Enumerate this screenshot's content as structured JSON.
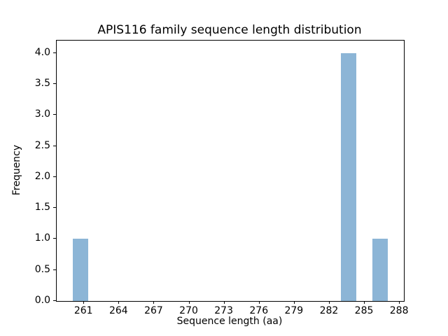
{
  "chart_data": {
    "type": "bar",
    "subtype": "histogram",
    "title": "APIS116 family sequence length distribution",
    "xlabel": "Sequence length (aa)",
    "ylabel": "Frequency",
    "bar_color": "#8cb5d6",
    "xlim": [
      258.65,
      288.35
    ],
    "ylim": [
      0,
      4.2
    ],
    "xticks": [
      261,
      264,
      267,
      270,
      273,
      276,
      279,
      282,
      285,
      288
    ],
    "yticks": [
      0.0,
      0.5,
      1.0,
      1.5,
      2.0,
      2.5,
      3.0,
      3.5,
      4.0
    ],
    "grid": false,
    "legend_position": "none",
    "bars": [
      {
        "x_start": 260.0,
        "x_end": 261.35,
        "frequency": 1
      },
      {
        "x_start": 282.95,
        "x_end": 284.3,
        "frequency": 4
      },
      {
        "x_start": 285.65,
        "x_end": 287.0,
        "frequency": 1
      }
    ]
  }
}
